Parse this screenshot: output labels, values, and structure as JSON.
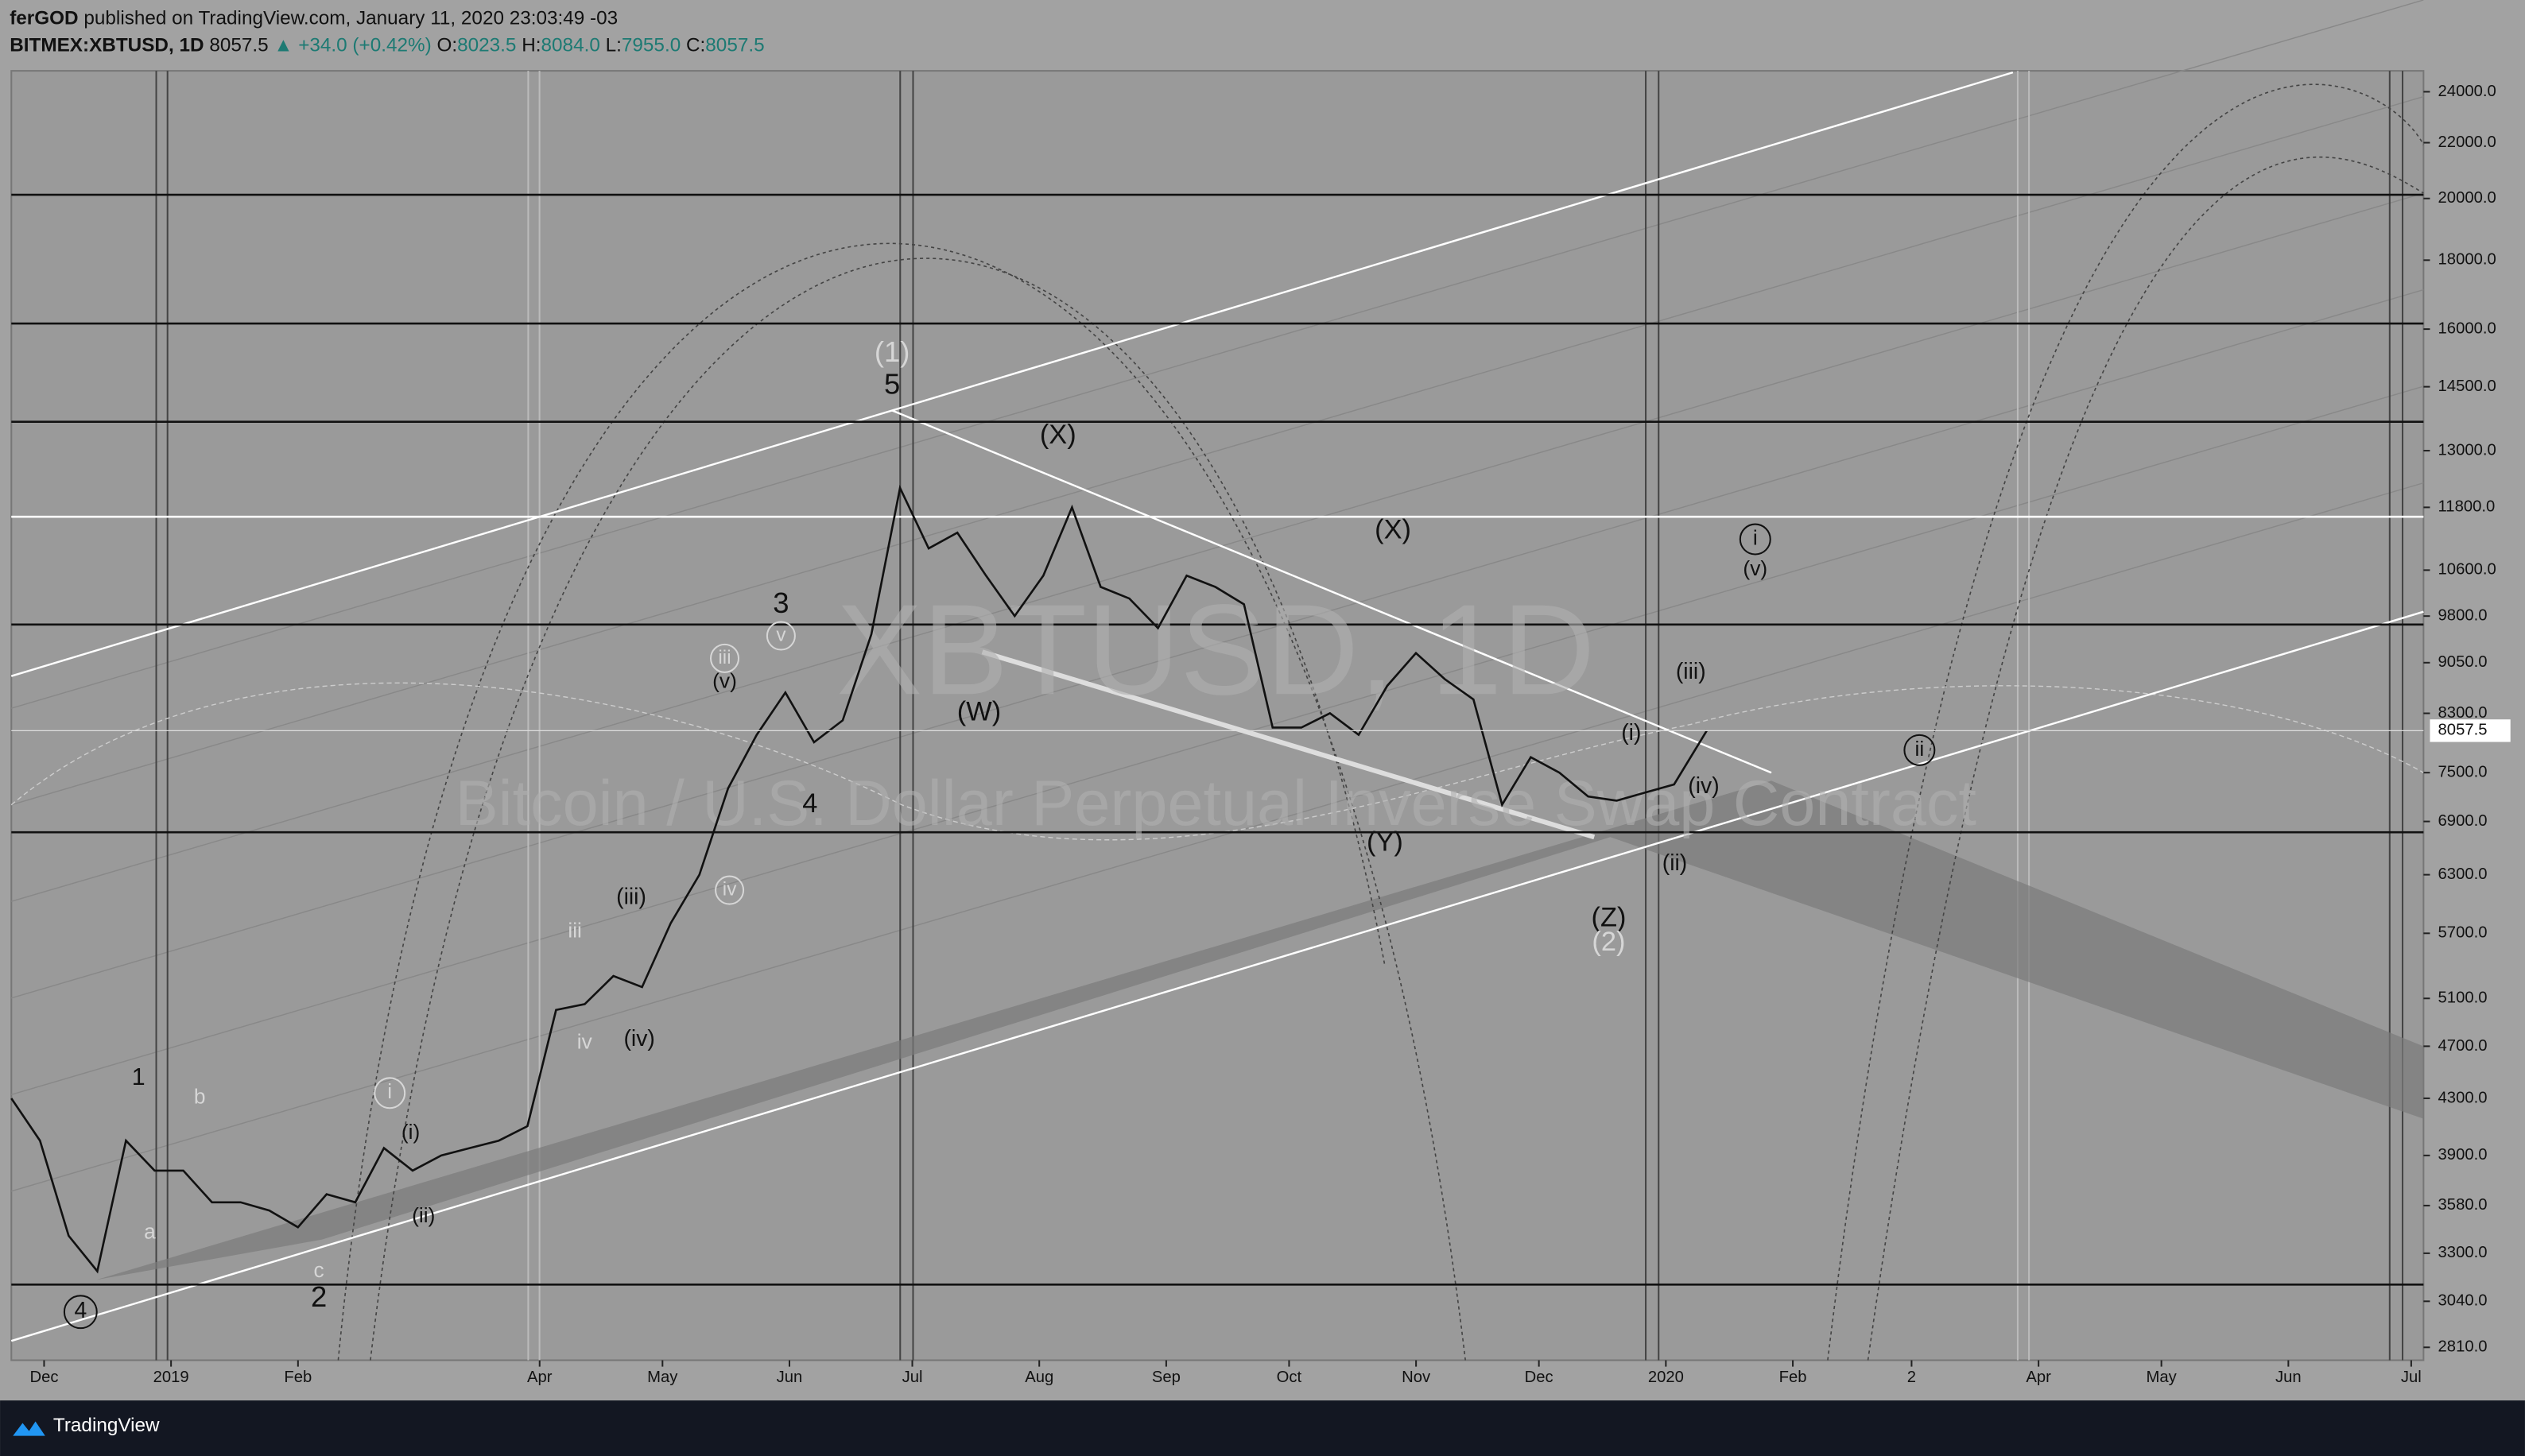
{
  "header": {
    "author": "ferGOD",
    "published": "published on TradingView.com, January 11, 2020 23:03:49 -03",
    "symbol": "BITMEX:XBTUSD, 1D",
    "price": "8057.5",
    "change": "▲ +34.0 (+0.42%)",
    "o_label": "O:",
    "open": "8023.5",
    "h_label": "H:",
    "high": "8084.0",
    "l_label": "L:",
    "low": "7955.0",
    "c_label": "C:",
    "close": "8057.5"
  },
  "watermark": {
    "symbol": "XBTUSD, 1D",
    "description": "Bitcoin / U.S. Dollar Perpetual Inverse Swap Contract"
  },
  "footer": {
    "brand": "TradingView"
  },
  "chart_data": {
    "type": "line",
    "yscale": "log",
    "x": [
      "2018-11-23",
      "2018-11-30",
      "2018-12-07",
      "2018-12-14",
      "2018-12-21",
      "2018-12-28",
      "2019-01-04",
      "2019-01-11",
      "2019-01-18",
      "2019-01-25",
      "2019-02-01",
      "2019-02-08",
      "2019-02-15",
      "2019-02-22",
      "2019-03-01",
      "2019-03-08",
      "2019-03-15",
      "2019-03-22",
      "2019-03-29",
      "2019-04-05",
      "2019-04-12",
      "2019-04-19",
      "2019-04-26",
      "2019-05-03",
      "2019-05-10",
      "2019-05-17",
      "2019-05-24",
      "2019-05-31",
      "2019-06-07",
      "2019-06-14",
      "2019-06-21",
      "2019-06-28",
      "2019-07-05",
      "2019-07-12",
      "2019-07-19",
      "2019-07-26",
      "2019-08-02",
      "2019-08-09",
      "2019-08-16",
      "2019-08-23",
      "2019-08-30",
      "2019-09-06",
      "2019-09-13",
      "2019-09-20",
      "2019-09-27",
      "2019-10-04",
      "2019-10-11",
      "2019-10-18",
      "2019-10-25",
      "2019-11-01",
      "2019-11-08",
      "2019-11-15",
      "2019-11-22",
      "2019-11-29",
      "2019-12-06",
      "2019-12-13",
      "2019-12-20",
      "2019-12-27",
      "2020-01-03",
      "2020-01-11"
    ],
    "series": [
      {
        "color": "#111111",
        "values": [
          4300,
          4000,
          3400,
          3200,
          4000,
          3800,
          3800,
          3600,
          3600,
          3550,
          3450,
          3650,
          3600,
          3950,
          3800,
          3900,
          3950,
          4000,
          4100,
          5000,
          5050,
          5300,
          5200,
          5800,
          6300,
          7300,
          8000,
          8600,
          7900,
          8200,
          9500,
          12200,
          11000,
          11300,
          10500,
          9800,
          10500,
          11800,
          10300,
          10100,
          9600,
          10500,
          10300,
          10000,
          8100,
          8100,
          8300,
          8000,
          8700,
          9200,
          8800,
          8500,
          7100,
          7700,
          7500,
          7200,
          7150,
          7250,
          7350,
          8057.5
        ]
      }
    ],
    "xlim": [
      "2018-11-23",
      "2020-07-04"
    ],
    "xticks": [
      {
        "value": "2018-12-01",
        "label": "Dec"
      },
      {
        "value": "2019-01-01",
        "label": "2019"
      },
      {
        "value": "2019-02-01",
        "label": "Feb"
      },
      {
        "value": "2019-04-01",
        "label": "Apr"
      },
      {
        "value": "2019-05-01",
        "label": "May"
      },
      {
        "value": "2019-06-01",
        "label": "Jun"
      },
      {
        "value": "2019-07-01",
        "label": "Jul"
      },
      {
        "value": "2019-08-01",
        "label": "Aug"
      },
      {
        "value": "2019-09-01",
        "label": "Sep"
      },
      {
        "value": "2019-10-01",
        "label": "Oct"
      },
      {
        "value": "2019-11-01",
        "label": "Nov"
      },
      {
        "value": "2019-12-01",
        "label": "Dec"
      },
      {
        "value": "2020-01-01",
        "label": "2020"
      },
      {
        "value": "2020-02-01",
        "label": "Feb"
      },
      {
        "value": "2020-03-01",
        "label": "2"
      },
      {
        "value": "2020-04-01",
        "label": "Apr"
      },
      {
        "value": "2020-05-01",
        "label": "May"
      },
      {
        "value": "2020-06-01",
        "label": "Jun"
      },
      {
        "value": "2020-07-01",
        "label": "Jul"
      }
    ],
    "ylim": [
      2810,
      24000
    ],
    "yticks": [
      {
        "value": 24000,
        "label": "24000.0"
      },
      {
        "value": 22000,
        "label": "22000.0"
      },
      {
        "value": 20000,
        "label": "20000.0"
      },
      {
        "value": 18000,
        "label": "18000.0"
      },
      {
        "value": 16000,
        "label": "16000.0"
      },
      {
        "value": 14500,
        "label": "14500.0"
      },
      {
        "value": 13000,
        "label": "13000.0"
      },
      {
        "value": 11800,
        "label": "11800.0"
      },
      {
        "value": 10600,
        "label": "10600.0"
      },
      {
        "value": 9800,
        "label": "9800.0"
      },
      {
        "value": 9050,
        "label": "9050.0"
      },
      {
        "value": 8300,
        "label": "8300.0"
      },
      {
        "value": 7500,
        "label": "7500.0"
      },
      {
        "value": 6900,
        "label": "6900.0"
      },
      {
        "value": 6300,
        "label": "6300.0"
      },
      {
        "value": 5700,
        "label": "5700.0"
      },
      {
        "value": 5100,
        "label": "5100.0"
      },
      {
        "value": 4700,
        "label": "4700.0"
      },
      {
        "value": 4300,
        "label": "4300.0"
      },
      {
        "value": 3900,
        "label": "3900.0"
      },
      {
        "value": 3580,
        "label": "3580.0"
      },
      {
        "value": 3300,
        "label": "3300.0"
      },
      {
        "value": 3040,
        "label": "3040.0"
      },
      {
        "value": 2810,
        "label": "2810.0"
      }
    ],
    "annotations": [
      "1",
      "b",
      "a",
      "c",
      "2",
      "4",
      "i",
      "(i)",
      "(ii)",
      "iii",
      "(iii)",
      "iv",
      "(iv)",
      "3",
      "v",
      "iii",
      "(v)",
      "iv",
      "4",
      "(1)",
      "5",
      "(X)",
      "(W)",
      "(X)",
      "(Y)",
      "(Z)",
      "(2)",
      "(i)",
      "(iii)",
      "(iv)",
      "(ii)",
      "i",
      "(v)",
      "ii"
    ]
  }
}
